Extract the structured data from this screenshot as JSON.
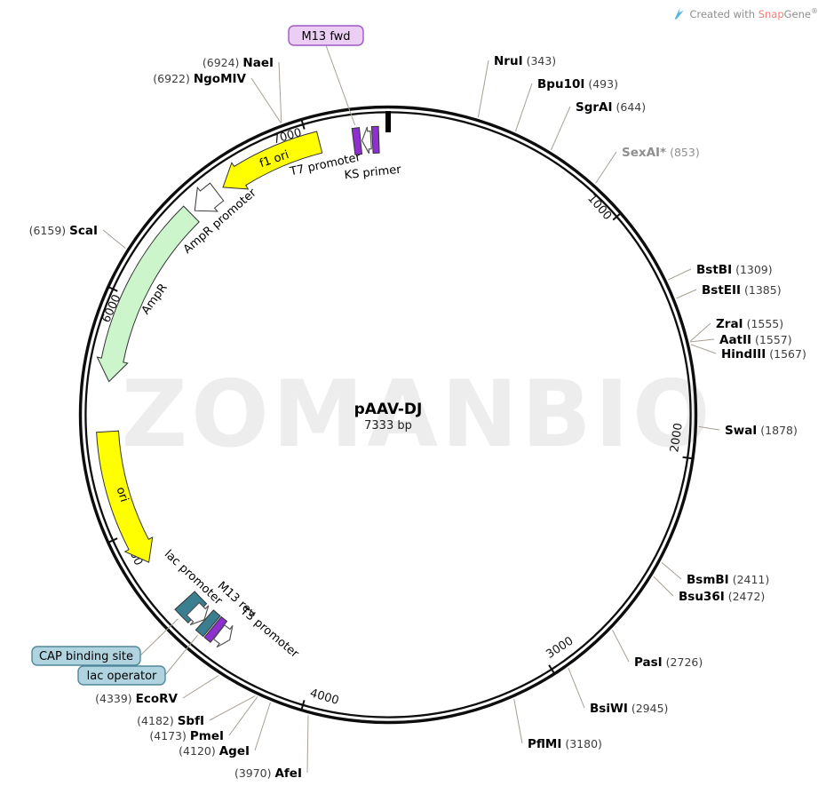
{
  "credit": {
    "prefix": "Created with ",
    "brand_snap": "Snap",
    "brand_gene": "Gene",
    "registered": "®"
  },
  "watermark": "ZOMANBIO",
  "plasmid": {
    "name": "pAAV-DJ",
    "size_label": "7333 bp"
  },
  "chart_data": {
    "type": "plasmid-map",
    "name": "pAAV-DJ",
    "length_bp": 7333,
    "size_label": "7333 bp",
    "tick_interval": 1000,
    "ticks": [
      1000,
      2000,
      3000,
      4000,
      5000,
      6000,
      7000
    ],
    "features": [
      {
        "label": "f1 ori",
        "start": 6600,
        "end": 7045,
        "kind": "rep_origin",
        "color": "#FFFF00",
        "direction": "ccw",
        "glyph": "band-arrow",
        "head_bp": 85,
        "label_style": "inside"
      },
      {
        "label": "AmpR promoter",
        "start": 6448,
        "end": 6568,
        "kind": "promoter",
        "color": "#FFFFFF",
        "direction": "ccw",
        "glyph": "band-arrow",
        "head_bp": 70,
        "label_style": "outside"
      },
      {
        "label": "AmpR",
        "start": 5638,
        "end": 6428,
        "kind": "CDS",
        "color": "#CCF5CC",
        "direction": "ccw",
        "glyph": "band-arrow",
        "head_bp": 90,
        "label_style": "inside"
      },
      {
        "label": "ori",
        "start": 4855,
        "end": 5430,
        "kind": "rep_origin",
        "color": "#FFFF00",
        "direction": "ccw",
        "glyph": "band-arrow",
        "head_bp": 85,
        "label_style": "inside"
      },
      {
        "label": "CAP binding site",
        "start": 4560,
        "end": 4636,
        "kind": "protein_bind",
        "color": "#3A7F8F",
        "direction": "none",
        "glyph": "box",
        "head_bp": 0,
        "label_style": "boxed"
      },
      {
        "label": "lac promoter",
        "start": 4520,
        "end": 4586,
        "kind": "promoter",
        "color": "#FFFFFF",
        "direction": "ccw",
        "glyph": "small-arrow",
        "head_bp": 28,
        "label_style": "outside"
      },
      {
        "label": "lac operator",
        "start": 4478,
        "end": 4518,
        "kind": "protein_bind",
        "color": "#3A7F8F",
        "direction": "none",
        "glyph": "box",
        "head_bp": 0,
        "label_style": "boxed"
      },
      {
        "label": "M13 rev",
        "start": 4440,
        "end": 4472,
        "kind": "primer",
        "color": "#8E2FD0",
        "direction": "none",
        "glyph": "box",
        "head_bp": 0,
        "label_style": "outside"
      },
      {
        "label": "T3 promoter",
        "start": 4382,
        "end": 4438,
        "kind": "promoter",
        "color": "#FFFFFF",
        "direction": "ccw",
        "glyph": "small-arrow",
        "head_bp": 26,
        "label_style": "outside"
      },
      {
        "label": "M13 fwd",
        "start": 7186,
        "end": 7216,
        "kind": "primer",
        "color": "#8E2FD0",
        "direction": "none",
        "glyph": "box",
        "head_bp": 0,
        "label_style": "boxed"
      },
      {
        "label": "T7 promoter",
        "start": 7222,
        "end": 7260,
        "kind": "promoter",
        "color": "#FFFFFF",
        "direction": "ccw",
        "glyph": "small-arrow",
        "head_bp": 26,
        "label_style": "outside"
      },
      {
        "label": "KS primer",
        "start": 7266,
        "end": 7294,
        "kind": "primer",
        "color": "#8E2FD0",
        "direction": "none",
        "glyph": "box",
        "head_bp": 0,
        "label_style": "outside"
      }
    ],
    "restriction_sites": [
      {
        "name": "NruI",
        "position": 343,
        "format": "name-first",
        "grayed": false
      },
      {
        "name": "Bpu10I",
        "position": 493,
        "format": "name-first",
        "grayed": false
      },
      {
        "name": "SgrAI",
        "position": 644,
        "format": "name-first",
        "grayed": false
      },
      {
        "name": "SexAI*",
        "position": 853,
        "format": "name-first",
        "grayed": true
      },
      {
        "name": "BstBI",
        "position": 1309,
        "format": "name-first",
        "grayed": false
      },
      {
        "name": "BstEII",
        "position": 1385,
        "format": "name-first",
        "grayed": false
      },
      {
        "name": "ZraI",
        "position": 1555,
        "format": "name-first",
        "grayed": false
      },
      {
        "name": "AatII",
        "position": 1557,
        "format": "name-first",
        "grayed": false
      },
      {
        "name": "HindIII",
        "position": 1567,
        "format": "name-first",
        "grayed": false
      },
      {
        "name": "SwaI",
        "position": 1878,
        "format": "name-first",
        "grayed": false
      },
      {
        "name": "BsmBI",
        "position": 2411,
        "format": "name-first",
        "grayed": false
      },
      {
        "name": "Bsu36I",
        "position": 2472,
        "format": "name-first",
        "grayed": false
      },
      {
        "name": "PasI",
        "position": 2726,
        "format": "name-first",
        "grayed": false
      },
      {
        "name": "BsiWI",
        "position": 2945,
        "format": "name-first",
        "grayed": false
      },
      {
        "name": "PflMI",
        "position": 3180,
        "format": "name-first",
        "grayed": false
      },
      {
        "name": "AfeI",
        "position": 3970,
        "format": "pos-first",
        "grayed": false
      },
      {
        "name": "AgeI",
        "position": 4120,
        "format": "pos-first",
        "grayed": false
      },
      {
        "name": "PmeI",
        "position": 4173,
        "format": "pos-first",
        "grayed": false
      },
      {
        "name": "SbfI",
        "position": 4182,
        "format": "pos-first",
        "grayed": false
      },
      {
        "name": "EcoRV",
        "position": 4339,
        "format": "pos-first",
        "grayed": false
      },
      {
        "name": "ScaI",
        "position": 6159,
        "format": "pos-first",
        "grayed": false
      },
      {
        "name": "NgoMIV",
        "position": 6922,
        "format": "pos-first",
        "grayed": false
      },
      {
        "name": "NaeI",
        "position": 6924,
        "format": "pos-first",
        "grayed": false
      }
    ],
    "colors": {
      "origin_fill": "#FFFF00",
      "cds_fill": "#CCF5CC",
      "primer_fill": "#8E2FD0",
      "protein_bind_fill": "#3A7F8F",
      "promoter_fill": "#FFFFFF",
      "leader": "#A89F93",
      "primer_label_box_fill": "#ECCEF5",
      "primer_label_box_stroke": "#9B59C7",
      "bind_label_box_fill": "#AFD3DF",
      "bind_label_box_stroke": "#51889B"
    }
  }
}
